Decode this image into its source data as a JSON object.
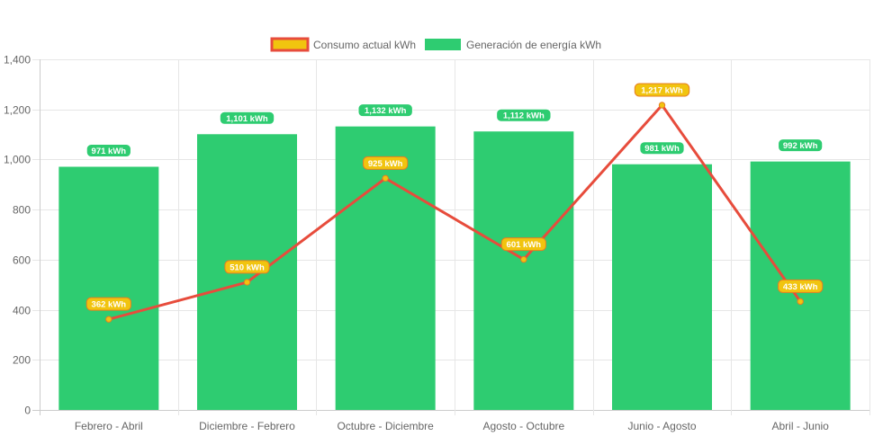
{
  "chart_data": {
    "type": "bar",
    "categories": [
      "Febrero - Abril",
      "Diciembre - Febrero",
      "Octubre - Diciembre",
      "Agosto - Octubre",
      "Junio - Agosto",
      "Abril - Junio"
    ],
    "series": [
      {
        "name": "Consumo actual kWh",
        "type": "line",
        "values": [
          362,
          510,
          925,
          601,
          1217,
          433
        ],
        "labels": [
          "362 kWh",
          "510 kWh",
          "925 kWh",
          "601 kWh",
          "1,217 kWh",
          "433 kWh"
        ],
        "color": "#e74c3c",
        "point_color": "#f1c40f"
      },
      {
        "name": "Generación de energía kWh",
        "type": "bar",
        "values": [
          971,
          1101,
          1132,
          1112,
          981,
          992
        ],
        "labels": [
          "971 kWh",
          "1,101 kWh",
          "1,132 kWh",
          "1,112 kWh",
          "981 kWh",
          "992 kWh"
        ],
        "color": "#2ecc71"
      }
    ],
    "yticks": [
      "0",
      "200",
      "400",
      "600",
      "800",
      "1,000",
      "1,200",
      "1,400"
    ],
    "ylim": [
      0,
      1400
    ],
    "grid": true,
    "legend_position": "top"
  }
}
